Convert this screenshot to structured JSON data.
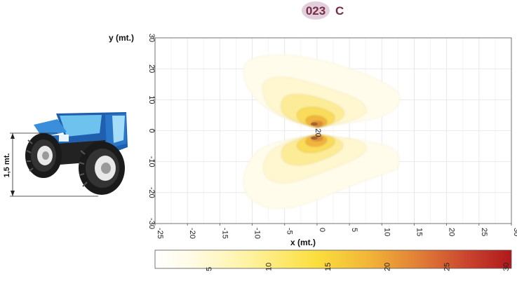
{
  "badge": {
    "number": "023",
    "letter": "C"
  },
  "tractor": {
    "height_label": "1,5 mt."
  },
  "chart_data": {
    "type": "heatmap",
    "xlabel": "x (mt.)",
    "ylabel": "y (mt.)",
    "xlim": [
      -25,
      30
    ],
    "ylim": [
      -30,
      30
    ],
    "xticks": [
      "-25",
      "-20",
      "-15",
      "-10",
      "-5",
      "0",
      "5",
      "10",
      "15",
      "20",
      "25",
      "30"
    ],
    "yticks": [
      "30",
      "20",
      "10",
      "0",
      "-10",
      "-20",
      "-30"
    ],
    "grid": true,
    "contour_levels": [
      2,
      5,
      8,
      11,
      14,
      17,
      20
    ],
    "annotation": "20",
    "annotation_position": [
      0,
      0
    ],
    "colorbar": {
      "range": [
        0,
        30
      ],
      "ticks": [
        "5",
        "10",
        "15",
        "20",
        "25",
        "30"
      ],
      "colors": [
        "#ffffff",
        "#fff6c8",
        "#fce24a",
        "#f0a832",
        "#d65a3a",
        "#b01a1a"
      ]
    },
    "lobes": [
      {
        "name": "",
        "values": []
      }
    ]
  }
}
